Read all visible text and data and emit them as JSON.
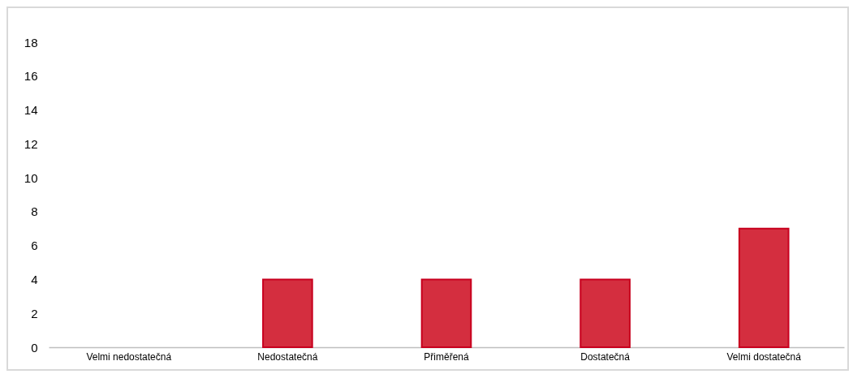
{
  "chart_data": {
    "type": "bar",
    "categories": [
      "Velmi nedostatečná",
      "Nedostatečná",
      "Přiměřená",
      "Dostatečná",
      "Velmi dostatečná"
    ],
    "values": [
      0,
      4,
      4,
      4,
      7
    ],
    "color": "#d42e3f",
    "ylim": [
      0,
      18
    ],
    "yticks": [
      0,
      2,
      4,
      6,
      8,
      10,
      12,
      14,
      16,
      18
    ],
    "grid": false
  }
}
